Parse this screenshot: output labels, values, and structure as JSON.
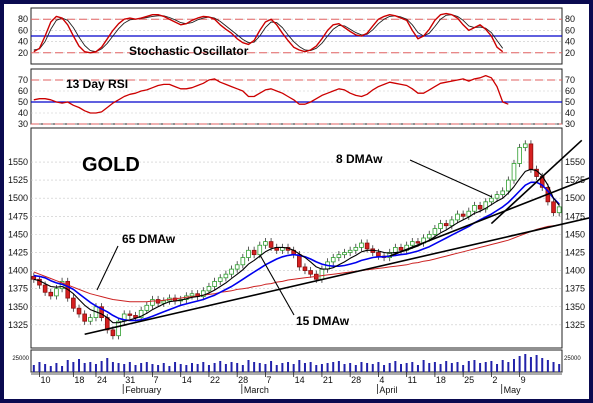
{
  "chart_data": {
    "type": "line",
    "title": "GOLD",
    "colors": {
      "price_up": "#2e9e2e",
      "price_down": "#d62020",
      "stoch_k": "#cc0000",
      "stoch_d": "#222222",
      "rsi": "#cc0000",
      "dma8": "#000000",
      "dma15": "#0000ee",
      "dma65": "#cc2222",
      "trendline": "#000000",
      "midline": "#0000cc",
      "refline": "#e06060",
      "volume": "#2222aa",
      "frame": "#0a0a50"
    },
    "panels": {
      "stochastic": {
        "label": "Stochastic Oscillator",
        "ylim": [
          0,
          100
        ],
        "ticks": [
          "80",
          "60",
          "40",
          "20"
        ],
        "ref_levels": [
          80,
          20
        ],
        "mid_level": 50,
        "k": [
          22,
          28,
          50,
          75,
          85,
          82,
          70,
          50,
          32,
          22,
          20,
          22,
          30,
          45,
          60,
          72,
          80,
          82,
          80,
          82,
          85,
          88,
          88,
          85,
          80,
          75,
          70,
          72,
          78,
          82,
          85,
          84,
          80,
          70,
          62,
          55,
          45,
          38,
          35,
          42,
          60,
          75,
          80,
          70,
          55,
          42,
          30,
          25,
          22,
          25,
          32,
          45,
          60,
          70,
          72,
          65,
          58,
          52,
          50,
          55,
          68,
          80,
          85,
          88,
          86,
          82,
          78,
          60,
          45,
          50,
          62,
          78,
          88,
          90,
          88,
          82,
          70,
          60,
          65,
          70,
          62,
          50,
          30,
          22
        ],
        "d": [
          25,
          27,
          40,
          62,
          78,
          82,
          78,
          65,
          48,
          33,
          24,
          22,
          27,
          37,
          50,
          63,
          73,
          79,
          80,
          81,
          83,
          85,
          86,
          86,
          83,
          79,
          74,
          72,
          74,
          79,
          82,
          84,
          82,
          76,
          68,
          60,
          52,
          44,
          38,
          39,
          50,
          65,
          75,
          74,
          65,
          52,
          40,
          31,
          25,
          24,
          28,
          37,
          50,
          62,
          69,
          68,
          62,
          56,
          52,
          53,
          61,
          72,
          80,
          85,
          86,
          84,
          80,
          70,
          56,
          50,
          55,
          67,
          80,
          87,
          88,
          85,
          78,
          68,
          65,
          66,
          64,
          56,
          42,
          28
        ]
      },
      "rsi": {
        "label": "13 Day RSI",
        "ylim": [
          30,
          80
        ],
        "ticks": [
          "70",
          "60",
          "50",
          "40",
          "30"
        ],
        "ref_levels": [
          70,
          30
        ],
        "mid_level": 50,
        "values": [
          52,
          53,
          53,
          52,
          50,
          49,
          50,
          47,
          45,
          42,
          40,
          40,
          41,
          45,
          49,
          52,
          55,
          57,
          58,
          60,
          61,
          63,
          65,
          66,
          66,
          64,
          62,
          62,
          63,
          65,
          67,
          70,
          71,
          68,
          66,
          64,
          62,
          60,
          55,
          55,
          58,
          61,
          62,
          60,
          58,
          55,
          52,
          48,
          48,
          50,
          53,
          56,
          58,
          60,
          62,
          61,
          58,
          56,
          55,
          57,
          61,
          64,
          66,
          68,
          67,
          66,
          65,
          62,
          58,
          58,
          61,
          64,
          67,
          68,
          69,
          70,
          71,
          69,
          71,
          72,
          74,
          72,
          64,
          50,
          48
        ]
      },
      "price": {
        "ylim": [
          1293,
          1597
        ],
        "ticks": [
          "1550",
          "1525",
          "1500",
          "1475",
          "1450",
          "1425",
          "1400",
          "1375",
          "1350",
          "1325"
        ],
        "series": [
          {
            "name": "8 DMAw"
          },
          {
            "name": "15 DMAw"
          },
          {
            "name": "65 DMAw"
          }
        ],
        "close": [
          1388,
          1380,
          1370,
          1365,
          1375,
          1385,
          1362,
          1348,
          1340,
          1330,
          1335,
          1350,
          1335,
          1318,
          1310,
          1330,
          1340,
          1338,
          1335,
          1345,
          1352,
          1360,
          1355,
          1358,
          1362,
          1358,
          1360,
          1365,
          1368,
          1364,
          1372,
          1378,
          1385,
          1390,
          1395,
          1402,
          1408,
          1418,
          1428,
          1422,
          1435,
          1440,
          1432,
          1428,
          1432,
          1428,
          1422,
          1405,
          1400,
          1395,
          1388,
          1402,
          1412,
          1418,
          1422,
          1425,
          1428,
          1432,
          1438,
          1430,
          1425,
          1420,
          1418,
          1425,
          1432,
          1428,
          1435,
          1440,
          1438,
          1445,
          1450,
          1458,
          1465,
          1462,
          1470,
          1478,
          1475,
          1482,
          1490,
          1485,
          1495,
          1500,
          1505,
          1510,
          1525,
          1548,
          1570,
          1575,
          1540,
          1530,
          1515,
          1495,
          1480,
          1488
        ],
        "dma8": [
          1388,
          1386,
          1382,
          1378,
          1377,
          1378,
          1374,
          1368,
          1360,
          1352,
          1346,
          1343,
          1340,
          1335,
          1328,
          1328,
          1330,
          1332,
          1334,
          1337,
          1341,
          1346,
          1350,
          1354,
          1357,
          1358,
          1359,
          1361,
          1363,
          1364,
          1366,
          1369,
          1373,
          1378,
          1383,
          1389,
          1395,
          1401,
          1409,
          1414,
          1420,
          1426,
          1430,
          1432,
          1432,
          1431,
          1428,
          1423,
          1418,
          1412,
          1405,
          1402,
          1402,
          1404,
          1408,
          1412,
          1417,
          1421,
          1426,
          1428,
          1428,
          1427,
          1425,
          1424,
          1425,
          1426,
          1428,
          1431,
          1434,
          1438,
          1442,
          1447,
          1452,
          1456,
          1461,
          1466,
          1470,
          1474,
          1479,
          1482,
          1486,
          1491,
          1496,
          1500,
          1507,
          1516,
          1527,
          1537,
          1540,
          1538,
          1531,
          1518,
          1500,
          1490
        ],
        "dma15": [
          1393,
          1392,
          1390,
          1386,
          1383,
          1381,
          1378,
          1374,
          1368,
          1362,
          1356,
          1351,
          1347,
          1343,
          1338,
          1334,
          1332,
          1331,
          1331,
          1332,
          1334,
          1337,
          1340,
          1343,
          1346,
          1349,
          1352,
          1354,
          1356,
          1358,
          1360,
          1363,
          1366,
          1370,
          1374,
          1378,
          1383,
          1388,
          1393,
          1398,
          1403,
          1408,
          1412,
          1416,
          1419,
          1421,
          1422,
          1421,
          1419,
          1416,
          1412,
          1409,
          1407,
          1406,
          1406,
          1407,
          1409,
          1411,
          1414,
          1416,
          1418,
          1419,
          1419,
          1420,
          1421,
          1422,
          1423,
          1425,
          1427,
          1430,
          1433,
          1437,
          1441,
          1445,
          1449,
          1453,
          1457,
          1461,
          1466,
          1470,
          1474,
          1478,
          1483,
          1488,
          1494,
          1502,
          1510,
          1518,
          1522,
          1522,
          1518,
          1510,
          1500,
          1492
        ],
        "dma65": [
          1398,
          1395,
          1392,
          1389,
          1386,
          1383,
          1380,
          1377,
          1374,
          1371,
          1368,
          1366,
          1364,
          1362,
          1360,
          1359,
          1358,
          1357,
          1357,
          1357,
          1357,
          1358,
          1358,
          1359,
          1360,
          1361,
          1362,
          1363,
          1364,
          1365,
          1366,
          1367,
          1368,
          1370,
          1371,
          1372,
          1374,
          1375,
          1376,
          1378,
          1379,
          1381,
          1382,
          1384,
          1385,
          1387,
          1388,
          1389,
          1390,
          1391,
          1392,
          1393,
          1394,
          1395,
          1396,
          1397,
          1398,
          1399,
          1400,
          1401,
          1402,
          1403,
          1404,
          1405,
          1406,
          1407,
          1408,
          1410,
          1411,
          1413,
          1414,
          1416,
          1418,
          1420,
          1422,
          1424,
          1426,
          1428,
          1430,
          1432,
          1434,
          1436,
          1438,
          1440,
          1442,
          1445,
          1448,
          1451,
          1454,
          1457,
          1459,
          1461,
          1462,
          1463
        ],
        "trendlines": [
          {
            "name": "lower",
            "from": [
              9,
              1312
            ],
            "to": [
              99,
              1474
            ]
          },
          {
            "name": "middle",
            "from": [
              63,
              1420
            ],
            "to": [
              99,
              1530
            ]
          },
          {
            "name": "upper",
            "from": [
              81,
              1465
            ],
            "to": [
              97,
              1580
            ]
          }
        ],
        "annotations": [
          {
            "text": "8 DMAw",
            "target": "8 DMAw"
          },
          {
            "text": "15 DMAw",
            "target": "15 DMAw"
          },
          {
            "text": "65 DMAw",
            "target": "65 DMAw"
          }
        ]
      },
      "volume": {
        "tick_label": "25000",
        "values": [
          0.35,
          0.5,
          0.4,
          0.3,
          0.45,
          0.3,
          0.6,
          0.5,
          0.65,
          0.45,
          0.5,
          0.4,
          0.55,
          0.7,
          0.5,
          0.45,
          0.4,
          0.5,
          0.35,
          0.45,
          0.5,
          0.4,
          0.35,
          0.45,
          0.3,
          0.5,
          0.4,
          0.35,
          0.45,
          0.4,
          0.5,
          0.35,
          0.45,
          0.55,
          0.4,
          0.5,
          0.45,
          0.35,
          0.6,
          0.5,
          0.45,
          0.4,
          0.55,
          0.35,
          0.45,
          0.5,
          0.4,
          0.6,
          0.45,
          0.5,
          0.35,
          0.4,
          0.45,
          0.5,
          0.55,
          0.4,
          0.45,
          0.35,
          0.5,
          0.45,
          0.4,
          0.5,
          0.35,
          0.45,
          0.55,
          0.4,
          0.45,
          0.5,
          0.35,
          0.6,
          0.45,
          0.5,
          0.4,
          0.55,
          0.45,
          0.5,
          0.35,
          0.55,
          0.6,
          0.45,
          0.5,
          0.55,
          0.4,
          0.6,
          0.5,
          0.65,
          0.8,
          0.9,
          0.75,
          0.85,
          0.7,
          0.6,
          0.5,
          0.4
        ]
      }
    },
    "x_axis": {
      "day_ticks": [
        {
          "label": "10",
          "i": 1
        },
        {
          "label": "18",
          "i": 7
        },
        {
          "label": "24",
          "i": 11
        },
        {
          "label": "31",
          "i": 16
        },
        {
          "label": "7",
          "i": 21
        },
        {
          "label": "14",
          "i": 26
        },
        {
          "label": "22",
          "i": 31
        },
        {
          "label": "28",
          "i": 36
        },
        {
          "label": "7",
          "i": 41
        },
        {
          "label": "14",
          "i": 46
        },
        {
          "label": "21",
          "i": 51
        },
        {
          "label": "28",
          "i": 56
        },
        {
          "label": "4",
          "i": 61
        },
        {
          "label": "11",
          "i": 66
        },
        {
          "label": "18",
          "i": 71
        },
        {
          "label": "25",
          "i": 76
        },
        {
          "label": "2",
          "i": 81
        },
        {
          "label": "9",
          "i": 86
        }
      ],
      "month_labels": [
        {
          "label": "February",
          "i": 16
        },
        {
          "label": "March",
          "i": 37
        },
        {
          "label": "April",
          "i": 61
        },
        {
          "label": "May",
          "i": 83
        }
      ]
    }
  }
}
